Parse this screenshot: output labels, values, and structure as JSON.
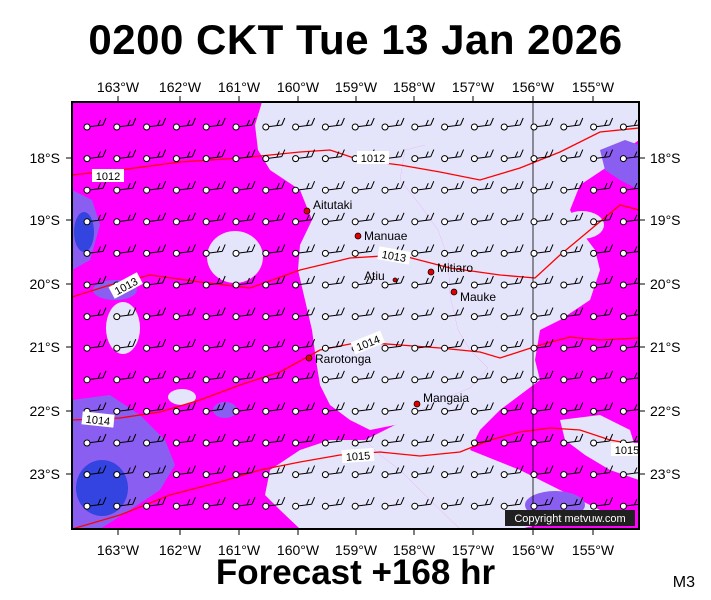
{
  "title": "0200 CKT Tue 13 Jan 2026",
  "footer": "Forecast +168 hr",
  "model_tag": "M3",
  "copyright": "Copyright metvuw.com",
  "colors": {
    "rain_heavy": "#3344e0",
    "rain_mod": "#8a5ef0",
    "rain_light": "#ff00ff",
    "dry": "#e4e4fa",
    "isobar": "#ff0000",
    "place_dot": "#e00000"
  },
  "axes": {
    "lon_labels": [
      "163°W",
      "162°W",
      "161°W",
      "160°W",
      "159°W",
      "158°W",
      "157°W",
      "156°W",
      "155°W"
    ],
    "lat_labels": [
      "18°S",
      "19°S",
      "20°S",
      "21°S",
      "22°S",
      "23°S"
    ]
  },
  "places": [
    {
      "name": "Aitutaki"
    },
    {
      "name": "Manuae"
    },
    {
      "name": "Atiu"
    },
    {
      "name": "Mitiaro"
    },
    {
      "name": "Mauke"
    },
    {
      "name": "Rarotonga"
    },
    {
      "name": "Mangaia"
    }
  ],
  "isobars": [
    {
      "label": "1012"
    },
    {
      "label": "1012"
    },
    {
      "label": "1013"
    },
    {
      "label": "1013"
    },
    {
      "label": "1014"
    },
    {
      "label": "1014"
    },
    {
      "label": "1015"
    },
    {
      "label": "1015"
    }
  ]
}
